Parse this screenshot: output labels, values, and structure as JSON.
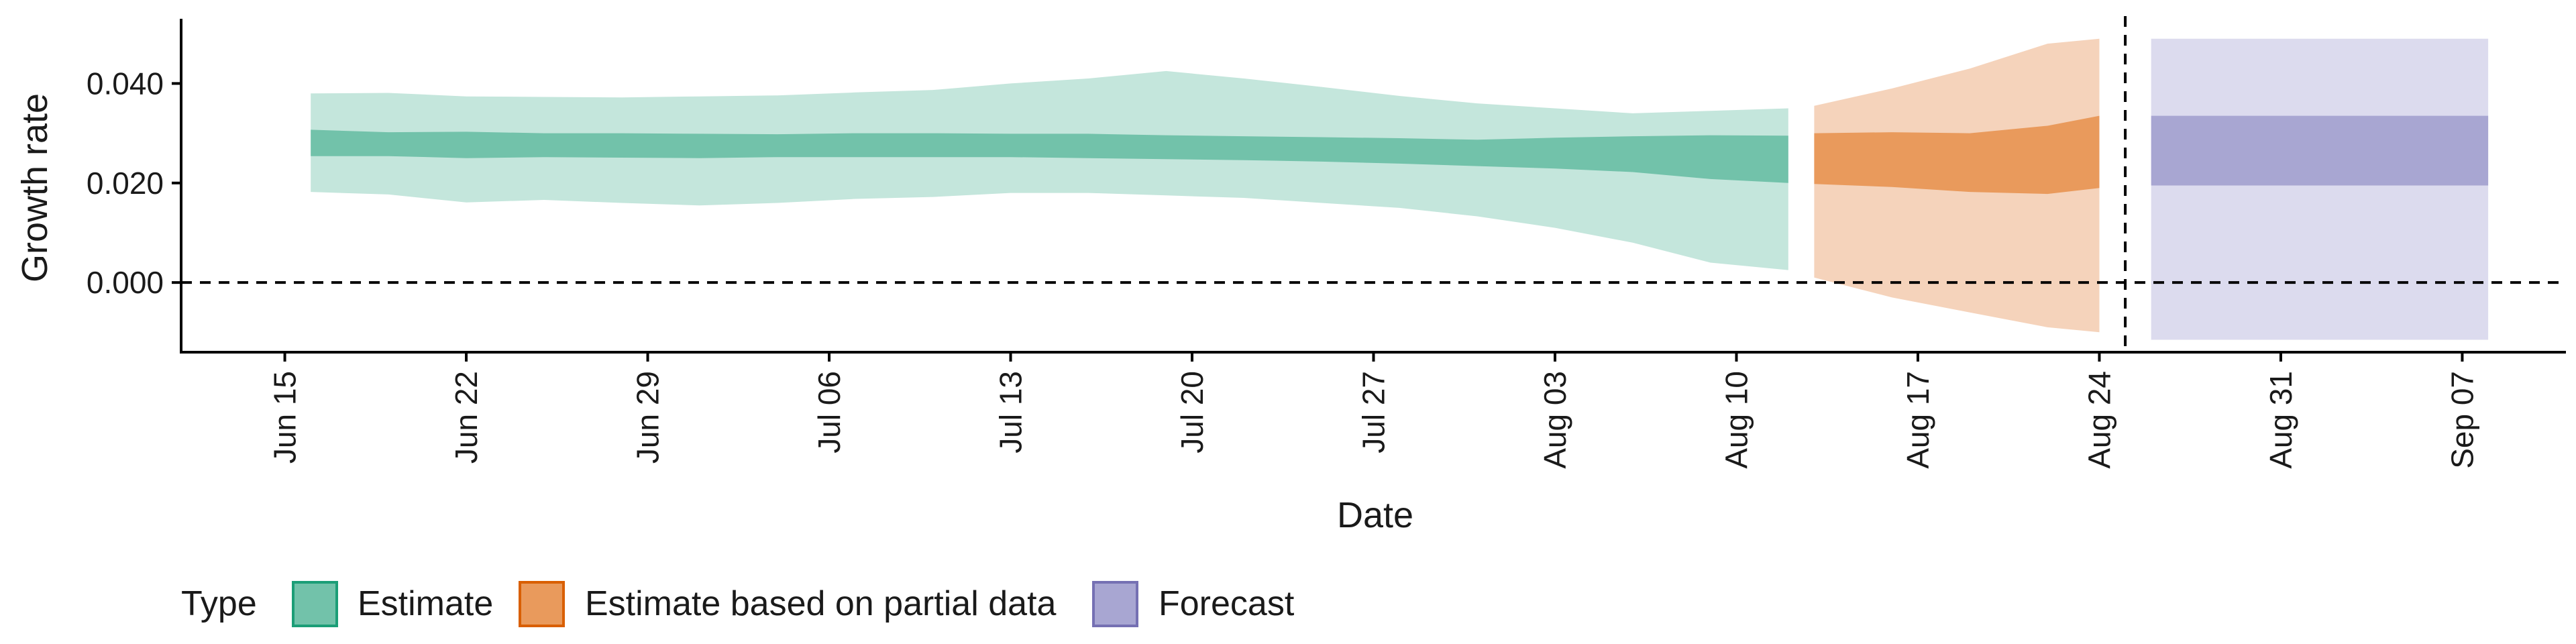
{
  "chart_data": {
    "type": "area",
    "xlabel": "Date",
    "ylabel": "Growth rate",
    "x_range": [
      "2020-06-11",
      "2020-09-11"
    ],
    "ylim": [
      -0.014,
      0.053
    ],
    "x_ticks": [
      {
        "date": "2020-06-15",
        "label": "Jun 15"
      },
      {
        "date": "2020-06-22",
        "label": "Jun 22"
      },
      {
        "date": "2020-06-29",
        "label": "Jun 29"
      },
      {
        "date": "2020-07-06",
        "label": "Jul 06"
      },
      {
        "date": "2020-07-13",
        "label": "Jul 13"
      },
      {
        "date": "2020-07-20",
        "label": "Jul 20"
      },
      {
        "date": "2020-07-27",
        "label": "Jul 27"
      },
      {
        "date": "2020-08-03",
        "label": "Aug 03"
      },
      {
        "date": "2020-08-10",
        "label": "Aug 10"
      },
      {
        "date": "2020-08-17",
        "label": "Aug 17"
      },
      {
        "date": "2020-08-24",
        "label": "Aug 24"
      },
      {
        "date": "2020-08-31",
        "label": "Aug 31"
      },
      {
        "date": "2020-09-07",
        "label": "Sep 07"
      }
    ],
    "y_ticks": [
      {
        "value": 0.0,
        "label": "0.000"
      },
      {
        "value": 0.02,
        "label": "0.020"
      },
      {
        "value": 0.04,
        "label": "0.040"
      }
    ],
    "reference_lines": [
      {
        "axis": "y",
        "value": 0.0,
        "style": "dashed"
      },
      {
        "axis": "x",
        "value": "2020-08-25",
        "style": "dashed"
      }
    ],
    "legend": {
      "title": "Type",
      "placement": "bottom-left",
      "entries": [
        {
          "label": "Estimate",
          "fill": "#72c2aa",
          "stroke": "#1b9e77"
        },
        {
          "label": "Estimate based on partial data",
          "fill": "#e99a5c",
          "stroke": "#d95f02"
        },
        {
          "label": "Forecast",
          "fill": "#a8a6d2",
          "stroke": "#7570b3"
        }
      ]
    },
    "series": [
      {
        "type_label": "Estimate",
        "outer_fill": "#c4e6dc",
        "inner_fill": "#72c2aa",
        "points": [
          {
            "x": "2020-06-16",
            "lo90": 0.0182,
            "lo50": 0.0254,
            "hi50": 0.0307,
            "hi90": 0.038
          },
          {
            "x": "2020-06-19",
            "lo90": 0.0177,
            "lo50": 0.0254,
            "hi50": 0.0302,
            "hi90": 0.0381
          },
          {
            "x": "2020-06-22",
            "lo90": 0.0161,
            "lo50": 0.025,
            "hi50": 0.0303,
            "hi90": 0.0374
          },
          {
            "x": "2020-06-25",
            "lo90": 0.0166,
            "lo50": 0.0252,
            "hi50": 0.03,
            "hi90": 0.0373
          },
          {
            "x": "2020-06-28",
            "lo90": 0.016,
            "lo50": 0.0251,
            "hi50": 0.03,
            "hi90": 0.0372
          },
          {
            "x": "2020-07-01",
            "lo90": 0.0155,
            "lo50": 0.025,
            "hi50": 0.0299,
            "hi90": 0.0374
          },
          {
            "x": "2020-07-04",
            "lo90": 0.016,
            "lo50": 0.0252,
            "hi50": 0.0298,
            "hi90": 0.0376
          },
          {
            "x": "2020-07-07",
            "lo90": 0.0168,
            "lo50": 0.0252,
            "hi50": 0.03,
            "hi90": 0.0382
          },
          {
            "x": "2020-07-10",
            "lo90": 0.0172,
            "lo50": 0.0252,
            "hi50": 0.03,
            "hi90": 0.0387
          },
          {
            "x": "2020-07-13",
            "lo90": 0.018,
            "lo50": 0.0252,
            "hi50": 0.0299,
            "hi90": 0.04
          },
          {
            "x": "2020-07-16",
            "lo90": 0.018,
            "lo50": 0.025,
            "hi50": 0.0299,
            "hi90": 0.041
          },
          {
            "x": "2020-07-19",
            "lo90": 0.0175,
            "lo50": 0.0248,
            "hi50": 0.0296,
            "hi90": 0.0425
          },
          {
            "x": "2020-07-22",
            "lo90": 0.017,
            "lo50": 0.0246,
            "hi50": 0.0294,
            "hi90": 0.041
          },
          {
            "x": "2020-07-25",
            "lo90": 0.016,
            "lo50": 0.0243,
            "hi50": 0.0292,
            "hi90": 0.0393
          },
          {
            "x": "2020-07-28",
            "lo90": 0.015,
            "lo50": 0.0239,
            "hi50": 0.029,
            "hi90": 0.0375
          },
          {
            "x": "2020-07-31",
            "lo90": 0.0133,
            "lo50": 0.0234,
            "hi50": 0.0287,
            "hi90": 0.036
          },
          {
            "x": "2020-08-03",
            "lo90": 0.011,
            "lo50": 0.0229,
            "hi50": 0.0291,
            "hi90": 0.035
          },
          {
            "x": "2020-08-06",
            "lo90": 0.008,
            "lo50": 0.0222,
            "hi50": 0.0294,
            "hi90": 0.034
          },
          {
            "x": "2020-08-09",
            "lo90": 0.004,
            "lo50": 0.0208,
            "hi50": 0.0296,
            "hi90": 0.0345
          },
          {
            "x": "2020-08-12",
            "lo90": 0.0025,
            "lo50": 0.02,
            "hi50": 0.0295,
            "hi90": 0.035
          }
        ]
      },
      {
        "type_label": "Estimate based on partial data",
        "outer_fill": "#f5d3bb",
        "inner_fill": "#e99a5c",
        "points": [
          {
            "x": "2020-08-13",
            "lo90": 0.001,
            "lo50": 0.0198,
            "hi50": 0.03,
            "hi90": 0.0355
          },
          {
            "x": "2020-08-16",
            "lo90": -0.003,
            "lo50": 0.0192,
            "hi50": 0.0302,
            "hi90": 0.039
          },
          {
            "x": "2020-08-19",
            "lo90": -0.006,
            "lo50": 0.0182,
            "hi50": 0.03,
            "hi90": 0.043
          },
          {
            "x": "2020-08-22",
            "lo90": -0.009,
            "lo50": 0.0178,
            "hi50": 0.0315,
            "hi90": 0.048
          },
          {
            "x": "2020-08-24",
            "lo90": -0.01,
            "lo50": 0.019,
            "hi50": 0.0335,
            "hi90": 0.049
          }
        ]
      },
      {
        "type_label": "Forecast",
        "outer_fill": "#dcdbee",
        "inner_fill": "#a8a6d2",
        "points": [
          {
            "x": "2020-08-26",
            "lo90": -0.0115,
            "lo50": 0.0195,
            "hi50": 0.0335,
            "hi90": 0.049
          },
          {
            "x": "2020-09-08",
            "lo90": -0.0115,
            "lo50": 0.0195,
            "hi50": 0.0335,
            "hi90": 0.049
          }
        ]
      }
    ]
  }
}
